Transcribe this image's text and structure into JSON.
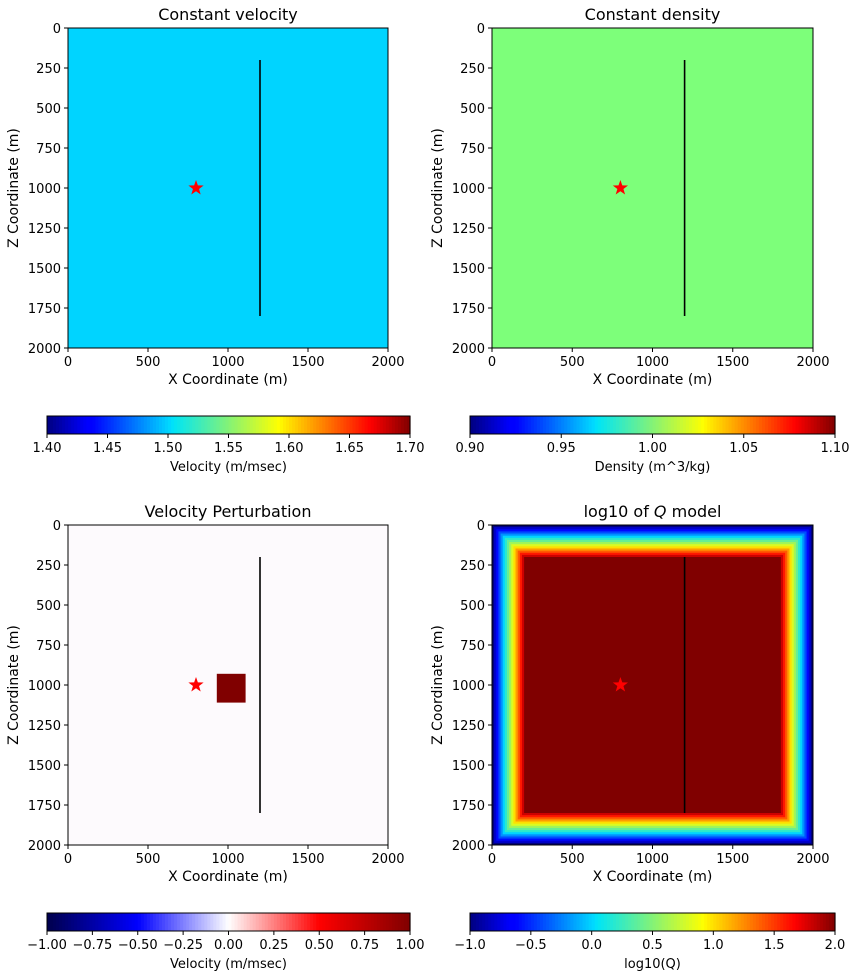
{
  "chart_data": [
    {
      "type": "heatmap",
      "title": "Constant velocity",
      "xlabel": "X Coordinate (m)",
      "ylabel": "Z Coordinate (m)",
      "xlim": [
        0,
        2000
      ],
      "ylim": [
        2000,
        0
      ],
      "xticks": [
        "0",
        "500",
        "1000",
        "1500",
        "2000"
      ],
      "yticks": [
        "0",
        "250",
        "500",
        "750",
        "1000",
        "1250",
        "1500",
        "1750",
        "2000"
      ],
      "field_value": 1.5,
      "field_color": "#00d4ff",
      "source": {
        "x": 800,
        "z": 1000,
        "marker": "star",
        "color": "#ff0000"
      },
      "receiver_line": {
        "x": 1200,
        "z_start": 200,
        "z_end": 1800
      },
      "colorbar": {
        "colormap": "jet",
        "label": "Velocity (m/msec)",
        "range": [
          1.4,
          1.7
        ],
        "ticks": [
          "1.40",
          "1.45",
          "1.50",
          "1.55",
          "1.60",
          "1.65",
          "1.70"
        ]
      }
    },
    {
      "type": "heatmap",
      "title": "Constant density",
      "xlabel": "X Coordinate (m)",
      "ylabel": "Z Coordinate (m)",
      "xlim": [
        0,
        2000
      ],
      "ylim": [
        2000,
        0
      ],
      "xticks": [
        "0",
        "500",
        "1000",
        "1500",
        "2000"
      ],
      "yticks": [
        "0",
        "250",
        "500",
        "750",
        "1000",
        "1250",
        "1500",
        "1750",
        "2000"
      ],
      "field_value": 1.0,
      "field_color": "#7dff7a",
      "source": {
        "x": 800,
        "z": 1000,
        "marker": "star",
        "color": "#ff0000"
      },
      "receiver_line": {
        "x": 1200,
        "z_start": 200,
        "z_end": 1800
      },
      "colorbar": {
        "colormap": "jet",
        "label": "Density (m^3/kg)",
        "range": [
          0.9,
          1.1
        ],
        "ticks": [
          "0.90",
          "0.95",
          "1.00",
          "1.05",
          "1.10"
        ]
      }
    },
    {
      "type": "heatmap",
      "title": "Velocity Perturbation",
      "xlabel": "X Coordinate (m)",
      "ylabel": "Z Coordinate (m)",
      "xlim": [
        0,
        2000
      ],
      "ylim": [
        2000,
        0
      ],
      "xticks": [
        "0",
        "500",
        "1000",
        "1500",
        "2000"
      ],
      "yticks": [
        "0",
        "250",
        "500",
        "750",
        "1000",
        "1250",
        "1500",
        "1750",
        "2000"
      ],
      "field_value": 0.0,
      "field_color": "#fdfafd",
      "anomaly": {
        "x0": 930,
        "x1": 1110,
        "z0": 930,
        "z1": 1110,
        "value": 1.0,
        "color": "#800000"
      },
      "source": {
        "x": 800,
        "z": 1000,
        "marker": "star",
        "color": "#ff0000"
      },
      "receiver_line": {
        "x": 1200,
        "z_start": 200,
        "z_end": 1800
      },
      "colorbar": {
        "colormap": "seismic",
        "label": "Velocity (m/msec)",
        "range": [
          -1,
          1
        ],
        "ticks": [
          "−1.00",
          "−0.75",
          "−0.50",
          "−0.25",
          "0.00",
          "0.25",
          "0.50",
          "0.75",
          "1.00"
        ]
      }
    },
    {
      "type": "heatmap",
      "title": "log10 of Q model",
      "title_math": "Q",
      "xlabel": "X Coordinate (m)",
      "ylabel": "Z Coordinate (m)",
      "xlim": [
        0,
        2000
      ],
      "ylim": [
        2000,
        0
      ],
      "xticks": [
        "0",
        "500",
        "1000",
        "1500",
        "2000"
      ],
      "yticks": [
        "0",
        "250",
        "500",
        "750",
        "1000",
        "1250",
        "1500",
        "1750",
        "2000"
      ],
      "interior_value": 2.0,
      "absorbing_band_values": [
        -1.0,
        -0.8,
        -0.6,
        -0.4,
        -0.2,
        0.0,
        0.2,
        0.4,
        0.6,
        0.8,
        1.0,
        1.2,
        1.4,
        1.6,
        1.8
      ],
      "absorbing_band_width_m": 200,
      "source": {
        "x": 800,
        "z": 1000,
        "marker": "star",
        "color": "#ff0000"
      },
      "receiver_line": {
        "x": 1200,
        "z_start": 200,
        "z_end": 1800
      },
      "colorbar": {
        "colormap": "jet",
        "label": "log10(Q)",
        "range": [
          -1,
          2
        ],
        "ticks": [
          "−1.0",
          "−0.5",
          "0.0",
          "0.5",
          "1.0",
          "1.5",
          "2.0"
        ]
      }
    }
  ]
}
